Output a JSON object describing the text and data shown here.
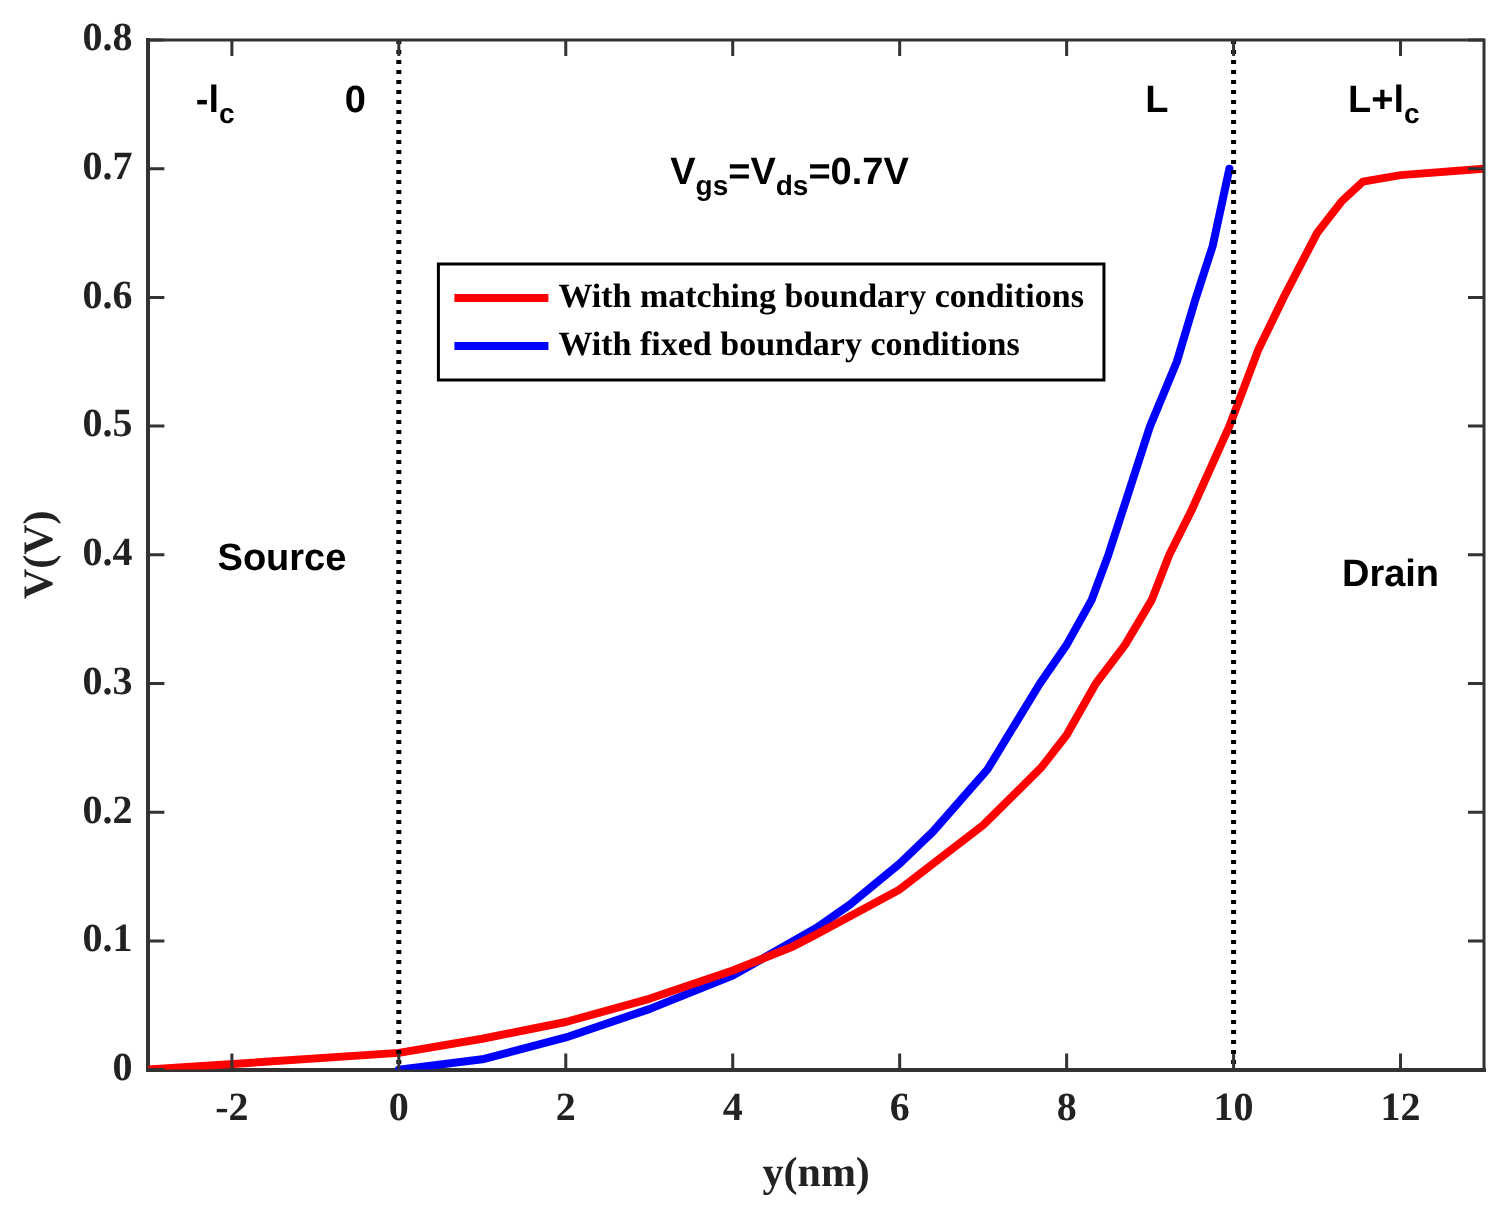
{
  "chart_data": {
    "type": "line",
    "xlabel": "y(nm)",
    "ylabel": "V(V)",
    "xlim": [
      -3,
      13
    ],
    "xticks": [
      -2,
      0,
      2,
      4,
      6,
      8,
      10,
      12
    ],
    "ylim": [
      0,
      0.8
    ],
    "yticks": [
      0,
      0.1,
      0.2,
      0.3,
      0.4,
      0.5,
      0.6,
      0.7,
      0.8
    ],
    "grid": false,
    "legend": "top left",
    "line_style": "solid",
    "marker": "none",
    "series": [
      {
        "name": "With matching boundary conditions",
        "color": "#ff0000",
        "x": [
          -3,
          0,
          1,
          2,
          3,
          4,
          4.7,
          5,
          6,
          7,
          7.7,
          8,
          8.35,
          8.7,
          9.02,
          9.23,
          9.5,
          9.95,
          10.3,
          10.6,
          11,
          11.3,
          11.55,
          12,
          13
        ],
        "values": [
          0,
          0.013,
          0.024,
          0.037,
          0.055,
          0.077,
          0.095,
          0.105,
          0.14,
          0.19,
          0.235,
          0.26,
          0.3,
          0.33,
          0.365,
          0.4,
          0.435,
          0.5,
          0.56,
          0.6,
          0.65,
          0.675,
          0.69,
          0.695,
          0.7
        ]
      },
      {
        "name": "With fixed boundary conditions",
        "color": "#0000ff",
        "x": [
          0,
          1,
          2,
          3,
          4,
          5,
          5.4,
          6,
          6.4,
          7.05,
          7.68,
          8,
          8.3,
          8.5,
          8.75,
          9,
          9.32,
          9.55,
          9.75,
          9.95
        ],
        "values": [
          0,
          0.008,
          0.025,
          0.047,
          0.073,
          0.11,
          0.128,
          0.16,
          0.185,
          0.233,
          0.3,
          0.33,
          0.365,
          0.4,
          0.45,
          0.5,
          0.55,
          0.6,
          0.64,
          0.7
        ]
      }
    ],
    "ref_lines": [
      {
        "axis": "x",
        "value": 0,
        "line_style": "dotted",
        "color": "#000000"
      },
      {
        "axis": "x",
        "value": 10,
        "line_style": "dotted",
        "color": "#000000"
      }
    ],
    "annotations": [
      "-l$_{c}$",
      "0",
      "L",
      "L+l$_{c}$",
      "V$_{gs}$=V$_{ds}$=0.7V",
      "Source",
      "Drain"
    ]
  }
}
